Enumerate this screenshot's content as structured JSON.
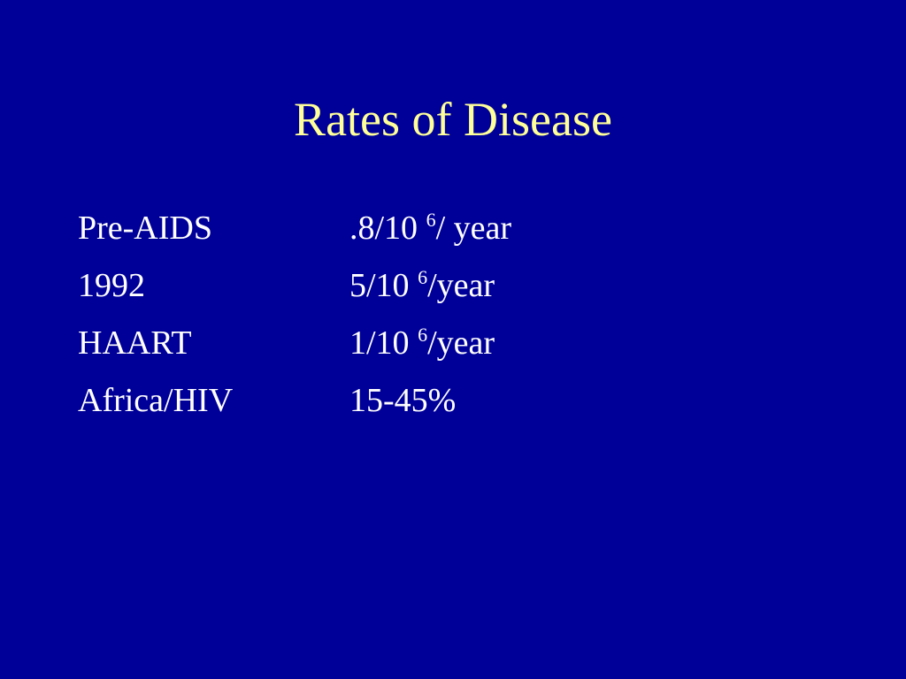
{
  "slide": {
    "title": "Rates of Disease",
    "colors": {
      "background": "#000099",
      "title": "#ffff99",
      "body_text": "#ffffff"
    },
    "rows": [
      {
        "label": "Pre-AIDS",
        "value_base": ".8/10",
        "value_exp": "6",
        "value_suffix": "/ year"
      },
      {
        "label": "1992",
        "value_base": "5/10",
        "value_exp": "6",
        "value_suffix": "/year"
      },
      {
        "label": "HAART",
        "value_base": "1/10",
        "value_exp": "6",
        "value_suffix": "/year"
      },
      {
        "label": "Africa/HIV",
        "value_base": "15-45%",
        "value_exp": "",
        "value_suffix": ""
      }
    ]
  }
}
